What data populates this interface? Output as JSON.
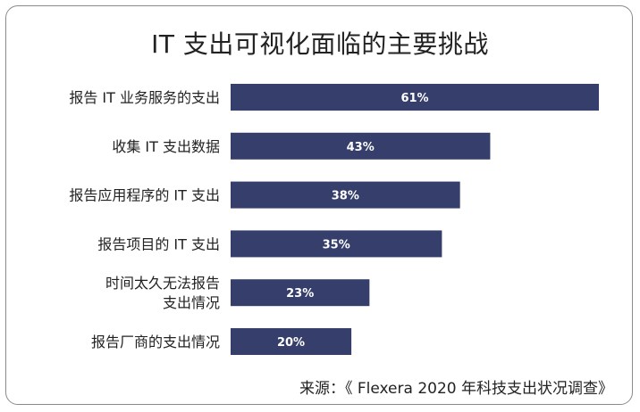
{
  "chart_data": {
    "type": "bar",
    "orientation": "horizontal",
    "title": "IT 支出可视化面临的主要挑战",
    "categories": [
      [
        "报告 IT 业务服务的支出"
      ],
      [
        "收集 IT 支出数据"
      ],
      [
        "报告应用程序的 IT 支出"
      ],
      [
        "报告项目的 IT 支出"
      ],
      [
        "时间太久无法报告",
        "支出情况"
      ],
      [
        "报告厂商的支出情况"
      ]
    ],
    "values": [
      61,
      43,
      38,
      35,
      23,
      20
    ],
    "value_labels": [
      "61%",
      "43%",
      "38%",
      "35%",
      "23%",
      "20%"
    ],
    "unit": "%",
    "xlim": [
      0,
      61
    ],
    "bar_color": "#363e6b",
    "grid": false,
    "legend": "none"
  },
  "source": "来源：《 Flexera 2020 年科技支出状况调查》"
}
